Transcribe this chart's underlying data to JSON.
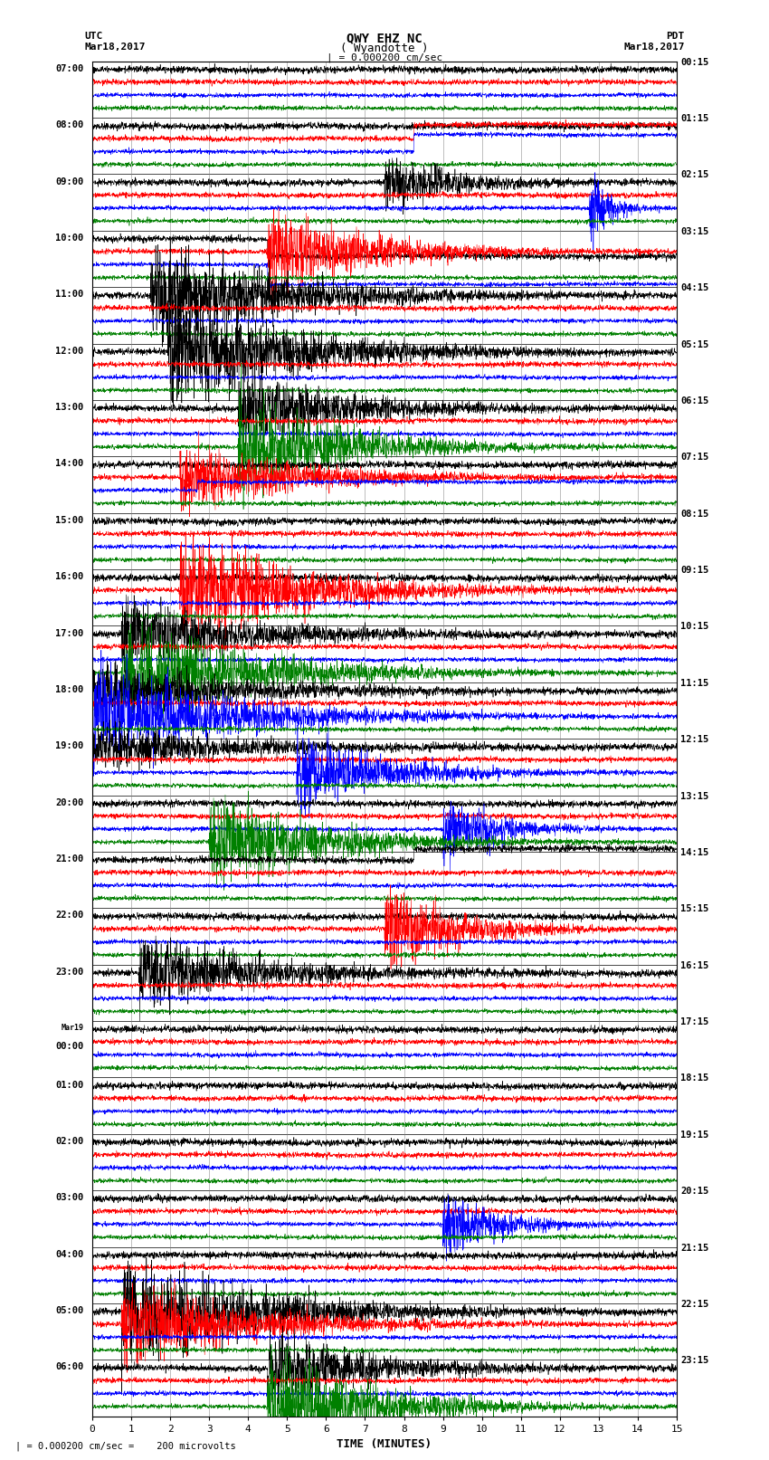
{
  "title_line1": "QWY EHZ NC",
  "title_line2": "( Wyandotte )",
  "title_line3": "| = 0.000200 cm/sec",
  "left_label_top": "UTC",
  "left_label_date": "Mar18,2017",
  "right_label_top": "PDT",
  "right_label_date": "Mar18,2017",
  "xlabel": "TIME (MINUTES)",
  "footnote": "| = 0.000200 cm/sec =    200 microvolts",
  "utc_times": [
    "07:00",
    "08:00",
    "09:00",
    "10:00",
    "11:00",
    "12:00",
    "13:00",
    "14:00",
    "15:00",
    "16:00",
    "17:00",
    "18:00",
    "19:00",
    "20:00",
    "21:00",
    "22:00",
    "23:00",
    "Mar19\n00:00",
    "01:00",
    "02:00",
    "03:00",
    "04:00",
    "05:00",
    "06:00"
  ],
  "pdt_times": [
    "00:15",
    "01:15",
    "02:15",
    "03:15",
    "04:15",
    "05:15",
    "06:15",
    "07:15",
    "08:15",
    "09:15",
    "10:15",
    "11:15",
    "12:15",
    "13:15",
    "14:15",
    "15:15",
    "16:15",
    "17:15",
    "18:15",
    "19:15",
    "20:15",
    "21:15",
    "22:15",
    "23:15"
  ],
  "n_rows": 24,
  "n_channels": 4,
  "colors": [
    "black",
    "red",
    "blue",
    "green"
  ],
  "bg_color": "#ffffff",
  "grid_color": "#808080",
  "x_min": 0,
  "x_max": 15,
  "x_ticks": [
    0,
    1,
    2,
    3,
    4,
    5,
    6,
    7,
    8,
    9,
    10,
    11,
    12,
    13,
    14,
    15
  ]
}
